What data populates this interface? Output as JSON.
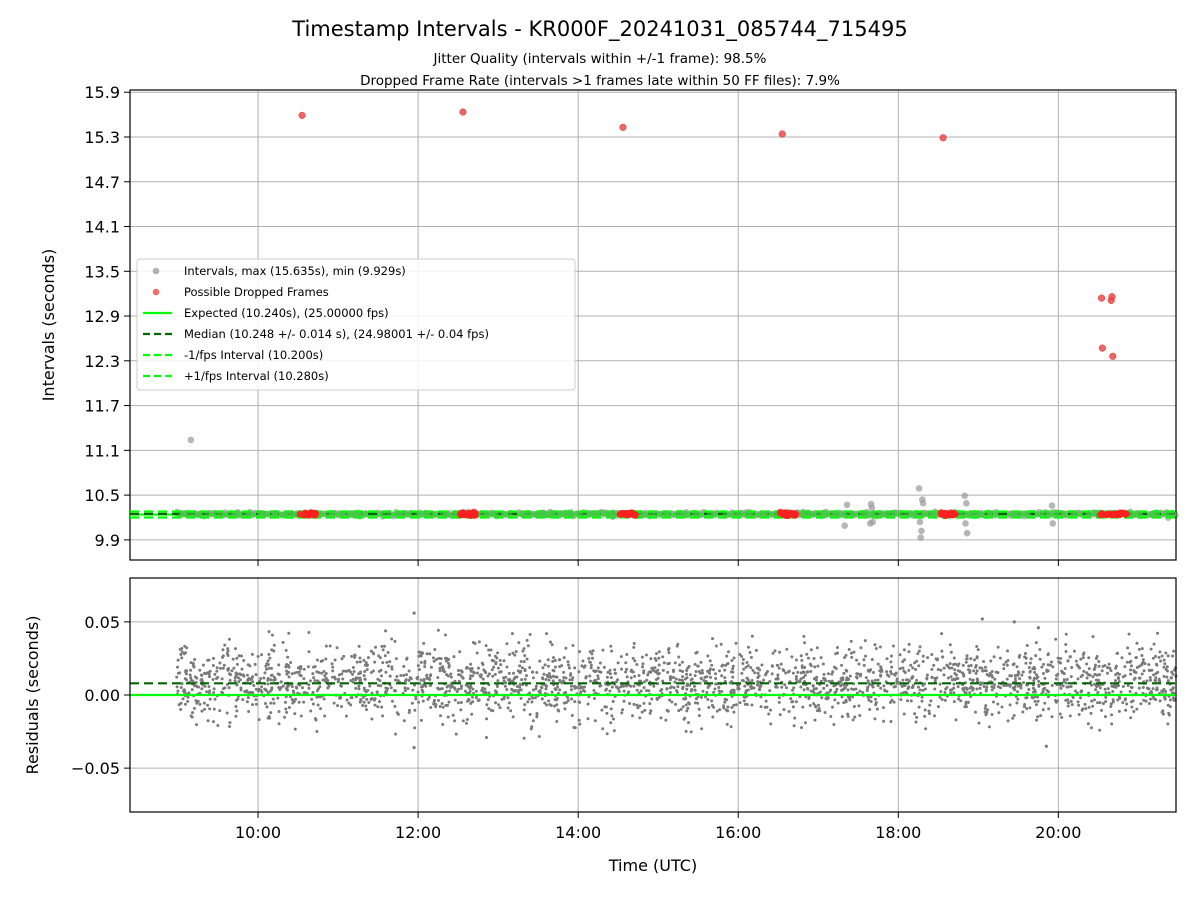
{
  "chart_data": [
    {
      "type": "scatter",
      "title": "Timestamp Intervals - KR000F_20241031_085744_715495",
      "subtitle_lines": [
        "Jitter Quality (intervals within +/-1 frame): 98.5%",
        "Dropped Frame Rate (intervals >1 frames late within 50 FF files): 7.9%"
      ],
      "xlabel": "",
      "ylabel": "Intervals (seconds)",
      "xlim_hours": [
        8.4,
        21.47
      ],
      "ylim": [
        9.63,
        15.93
      ],
      "x_ticks": [
        {
          "hour": 10,
          "label": "10:00"
        },
        {
          "hour": 12,
          "label": "12:00"
        },
        {
          "hour": 14,
          "label": "14:00"
        },
        {
          "hour": 16,
          "label": "16:00"
        },
        {
          "hour": 18,
          "label": "18:00"
        },
        {
          "hour": 20,
          "label": "20:00"
        }
      ],
      "y_ticks": [
        {
          "value": 9.9,
          "label": "9.9"
        },
        {
          "value": 10.5,
          "label": "10.5"
        },
        {
          "value": 11.1,
          "label": "11.1"
        },
        {
          "value": 11.7,
          "label": "11.7"
        },
        {
          "value": 12.3,
          "label": "12.3"
        },
        {
          "value": 12.9,
          "label": "12.9"
        },
        {
          "value": 13.5,
          "label": "13.5"
        },
        {
          "value": 14.1,
          "label": "14.1"
        },
        {
          "value": 14.7,
          "label": "14.7"
        },
        {
          "value": 15.3,
          "label": "15.3"
        },
        {
          "value": 15.9,
          "label": "15.9"
        }
      ],
      "grid": true,
      "legend_placement": "center-left",
      "legend": [
        {
          "label": "Intervals, max (15.635s), min (9.929s)",
          "marker": "dot",
          "color": "#9e9e9e"
        },
        {
          "label": "Possible Dropped Frames",
          "marker": "dot",
          "color": "#f04848"
        },
        {
          "label": "Expected (10.240s), (25.00000 fps)",
          "marker": "solid",
          "color": "#00ff00"
        },
        {
          "label": "Median (10.248 +/- 0.014 s), (24.98001 +/- 0.04 fps)",
          "marker": "dashed",
          "color": "#006400"
        },
        {
          "label": "-1/fps Interval (10.200s)",
          "marker": "dashed",
          "color": "#00ff00"
        },
        {
          "label": "+1/fps Interval (10.280s)",
          "marker": "dashed",
          "color": "#00ff00"
        }
      ],
      "series": [
        {
          "name": "Intervals, max (15.635s), min (9.929s)",
          "color": "#9e9e9e",
          "band": {
            "x_start_hour": 8.98,
            "x_end_hour": 21.47,
            "y_center": 10.245
          },
          "outliers": [
            {
              "x": 9.16,
              "y": 11.24
            },
            {
              "x": 17.33,
              "y": 10.09
            },
            {
              "x": 17.36,
              "y": 10.37
            },
            {
              "x": 17.65,
              "y": 10.12
            },
            {
              "x": 17.66,
              "y": 10.38
            },
            {
              "x": 17.67,
              "y": 10.33
            },
            {
              "x": 17.68,
              "y": 10.14
            },
            {
              "x": 18.26,
              "y": 10.59
            },
            {
              "x": 18.27,
              "y": 10.14
            },
            {
              "x": 18.28,
              "y": 9.93
            },
            {
              "x": 18.29,
              "y": 10.02
            },
            {
              "x": 18.3,
              "y": 10.44
            },
            {
              "x": 18.31,
              "y": 10.39
            },
            {
              "x": 18.83,
              "y": 10.49
            },
            {
              "x": 18.84,
              "y": 10.12
            },
            {
              "x": 18.85,
              "y": 10.39
            },
            {
              "x": 18.86,
              "y": 9.99
            },
            {
              "x": 19.92,
              "y": 10.36
            },
            {
              "x": 19.93,
              "y": 10.12
            }
          ]
        },
        {
          "name": "Possible Dropped Frames",
          "color": "#f04848",
          "points": [
            {
              "x": 10.55,
              "y": 15.59
            },
            {
              "x": 12.56,
              "y": 15.635
            },
            {
              "x": 14.56,
              "y": 15.43
            },
            {
              "x": 16.55,
              "y": 15.34
            },
            {
              "x": 18.56,
              "y": 15.29
            },
            {
              "x": 20.54,
              "y": 13.14
            },
            {
              "x": 20.66,
              "y": 13.11
            },
            {
              "x": 20.67,
              "y": 13.16
            },
            {
              "x": 20.55,
              "y": 12.47
            },
            {
              "x": 20.68,
              "y": 12.36
            }
          ],
          "clusters": [
            {
              "x_start": 10.52,
              "x_end": 10.72,
              "y": 10.245
            },
            {
              "x_start": 12.52,
              "x_end": 12.72,
              "y": 10.245
            },
            {
              "x_start": 14.52,
              "x_end": 14.72,
              "y": 10.245
            },
            {
              "x_start": 16.52,
              "x_end": 16.72,
              "y": 10.245
            },
            {
              "x_start": 18.52,
              "x_end": 18.72,
              "y": 10.245
            },
            {
              "x_start": 20.52,
              "x_end": 20.86,
              "y": 10.245
            }
          ]
        }
      ],
      "reference_lines": [
        {
          "name": "Expected (10.240s), (25.00000 fps)",
          "y": 10.24,
          "style": "solid",
          "color": "#00ff00"
        },
        {
          "name": "Median (10.248 +/- 0.014 s), (24.98001 +/- 0.04 fps)",
          "y": 10.248,
          "style": "dashed",
          "color": "#006400"
        },
        {
          "name": "-1/fps Interval (10.200s)",
          "y": 10.2,
          "style": "dashed",
          "color": "#00ff00"
        },
        {
          "name": "+1/fps Interval (10.280s)",
          "y": 10.28,
          "style": "dashed",
          "color": "#00ff00"
        }
      ]
    },
    {
      "type": "scatter",
      "title": "",
      "xlabel": "Time (UTC)",
      "ylabel": "Residuals (seconds)",
      "xlim_hours": [
        8.4,
        21.47
      ],
      "ylim": [
        -0.08,
        0.08
      ],
      "x_ticks": [
        {
          "hour": 10,
          "label": "10:00"
        },
        {
          "hour": 12,
          "label": "12:00"
        },
        {
          "hour": 14,
          "label": "14:00"
        },
        {
          "hour": 16,
          "label": "16:00"
        },
        {
          "hour": 18,
          "label": "18:00"
        },
        {
          "hour": 20,
          "label": "20:00"
        }
      ],
      "y_ticks": [
        {
          "value": 0.05,
          "label": "0.05"
        },
        {
          "value": 0.0,
          "label": "0.00"
        },
        {
          "value": -0.05,
          "label": "−0.05"
        }
      ],
      "grid": true,
      "series": [
        {
          "name": "",
          "color": "#7a7a7a",
          "band": {
            "x_start_hour": 8.98,
            "x_end_hour": 21.47,
            "y_min": -0.03,
            "y_max": 0.045
          },
          "outliers": [
            {
              "x": 11.95,
              "y": 0.056
            },
            {
              "x": 19.05,
              "y": 0.052
            },
            {
              "x": 19.45,
              "y": 0.05
            },
            {
              "x": 19.75,
              "y": 0.046
            },
            {
              "x": 19.85,
              "y": -0.035
            },
            {
              "x": 11.95,
              "y": -0.036
            }
          ]
        }
      ],
      "reference_lines": [
        {
          "name": "Expected",
          "y": 0.0,
          "style": "solid",
          "color": "#00ff00"
        },
        {
          "name": "Median",
          "y": 0.008,
          "style": "dashed",
          "color": "#006400"
        }
      ]
    }
  ]
}
